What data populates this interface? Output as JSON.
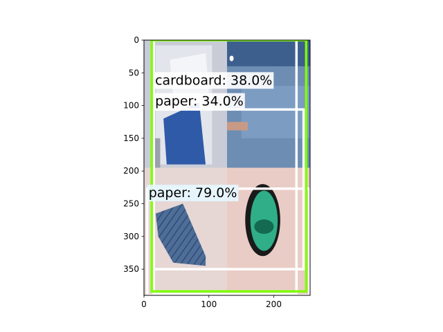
{
  "figure": {
    "image_extent": {
      "x": [
        0,
        256
      ],
      "y": [
        0,
        390
      ]
    },
    "x_ticks": [
      "0",
      "100",
      "200"
    ],
    "y_ticks": [
      "0",
      "50",
      "100",
      "150",
      "200",
      "250",
      "300",
      "350"
    ],
    "background_color": "#ffffff"
  },
  "image_tiles": [
    {
      "name": "top-left",
      "x": [
        0,
        128
      ],
      "y": [
        0,
        195
      ],
      "color": "#c9ccd6",
      "content": "cardboard box with blue printed label"
    },
    {
      "name": "top-right",
      "x": [
        128,
        256
      ],
      "y": [
        0,
        195
      ],
      "color": "#6d8db3",
      "content": "blue textured surface"
    },
    {
      "name": "bottom-left",
      "x": [
        0,
        128
      ],
      "y": [
        195,
        390
      ],
      "color": "#e6d6d4",
      "content": "folded blue fabric"
    },
    {
      "name": "bottom-right",
      "x": [
        128,
        256
      ],
      "y": [
        195,
        390
      ],
      "color": "#eaccc6",
      "content": "green round tin lid"
    }
  ],
  "detections": [
    {
      "label": "cardboard: 38.0%",
      "color": "#ffffff",
      "label_bg": "#ffffff",
      "box": {
        "x": [
          15,
          235
        ],
        "y": [
          0,
          388
        ]
      },
      "label_anchor": {
        "x": 15,
        "y": 68
      }
    },
    {
      "label": "paper: 34.0%",
      "color": "#ffffff",
      "label_bg": "#ffffff",
      "box": {
        "x": [
          15,
          246
        ],
        "y": [
          106,
          350
        ]
      },
      "label_anchor": {
        "x": 15,
        "y": 100
      }
    },
    {
      "label": "paper: 79.0%",
      "color": "#ffffff",
      "label_bg": "#e6f7ff",
      "box": {
        "x": [
          5,
          255
        ],
        "y": [
          227,
          390
        ]
      },
      "label_anchor": {
        "x": 5,
        "y": 240
      }
    },
    {
      "label": "",
      "color": "#7fff00",
      "label_bg": "#7fff00",
      "box": {
        "x": [
          12,
          250
        ],
        "y": [
          0,
          384
        ]
      },
      "label_anchor": {
        "x": 12,
        "y": 380
      }
    }
  ]
}
